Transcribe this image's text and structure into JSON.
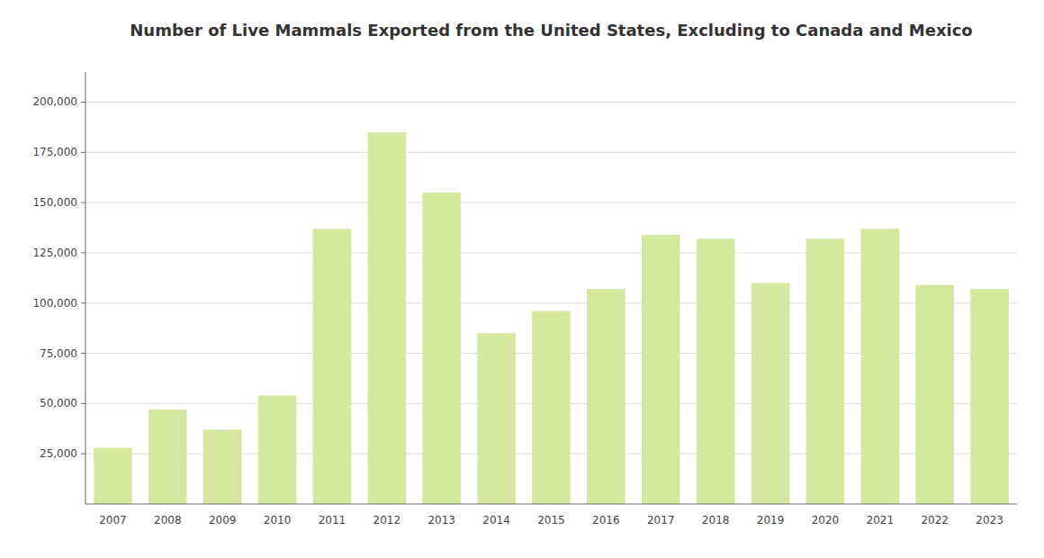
{
  "chart_data": {
    "type": "bar",
    "title": "Number of Live Mammals Exported from the United States, Excluding to Canada and Mexico",
    "categories": [
      "2007",
      "2008",
      "2009",
      "2010",
      "2011",
      "2012",
      "2013",
      "2014",
      "2015",
      "2016",
      "2017",
      "2018",
      "2019",
      "2020",
      "2021",
      "2022",
      "2023"
    ],
    "values": [
      28000,
      47000,
      37000,
      54000,
      137000,
      185000,
      155000,
      85000,
      96000,
      107000,
      134000,
      132000,
      110000,
      132000,
      137000,
      109000,
      107000
    ],
    "color": "#d4e8a0",
    "ylim": [
      0,
      215000
    ],
    "yticks": [
      {
        "value": 25000,
        "label": "25,000"
      },
      {
        "value": 50000,
        "label": "50,000"
      },
      {
        "value": 75000,
        "label": "75,000"
      },
      {
        "value": 100000,
        "label": "100,000"
      },
      {
        "value": 125000,
        "label": "125,000"
      },
      {
        "value": 150000,
        "label": "150,000"
      },
      {
        "value": 175000,
        "label": "175,000"
      },
      {
        "value": 200000,
        "label": "200,000"
      }
    ],
    "grid": true
  }
}
